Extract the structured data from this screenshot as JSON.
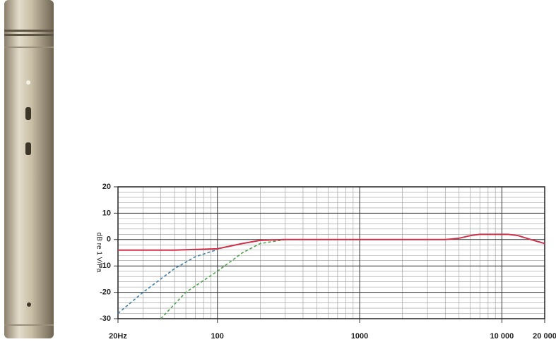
{
  "chart_data": {
    "type": "line",
    "y_label": "dB re 1 V/Pa",
    "xscale": "log",
    "xlim": [
      20,
      20000
    ],
    "ylim": [
      -30,
      20
    ],
    "xticks": [
      {
        "value": 20,
        "label": "20Hz"
      },
      100,
      1000,
      {
        "value": 10000,
        "label": "10 000"
      },
      {
        "value": 20000,
        "label": "20 000"
      }
    ],
    "yticks": [
      20,
      10,
      0,
      -10,
      -20,
      -30
    ],
    "x_minor_gridlines": [
      30,
      40,
      50,
      60,
      70,
      80,
      90,
      200,
      300,
      400,
      500,
      600,
      700,
      800,
      900,
      2000,
      3000,
      4000,
      5000,
      6000,
      7000,
      8000,
      9000
    ],
    "y_minor_gridlines": [
      18,
      16,
      14,
      12,
      8,
      6,
      4,
      2,
      -2,
      -4,
      -6,
      -8,
      -12,
      -14,
      -16,
      -18,
      -22,
      -24,
      -26,
      -28
    ],
    "grid": true,
    "series": [
      {
        "color": "#3f7fa8",
        "dashed": true,
        "x": [
          20,
          30,
          50,
          70,
          100
        ],
        "values": [
          -28,
          -20,
          -11,
          -6.5,
          -3.8
        ]
      },
      {
        "color": "#4ea24e",
        "dashed": true,
        "x": [
          40,
          60,
          100,
          150,
          200,
          300
        ],
        "values": [
          -30,
          -20,
          -12,
          -5,
          -1.5,
          0
        ]
      },
      {
        "color": "#d0304a",
        "dashed": false,
        "x": [
          20,
          50,
          100,
          150,
          200,
          300,
          1000,
          4000,
          5000,
          6000,
          7000,
          9000,
          11000,
          13000,
          16000,
          20000
        ],
        "values": [
          -4,
          -4,
          -3.5,
          -1.5,
          -0.3,
          0,
          0,
          0,
          0.5,
          1.5,
          2,
          2,
          2,
          1.5,
          0,
          -1.5
        ]
      }
    ]
  }
}
